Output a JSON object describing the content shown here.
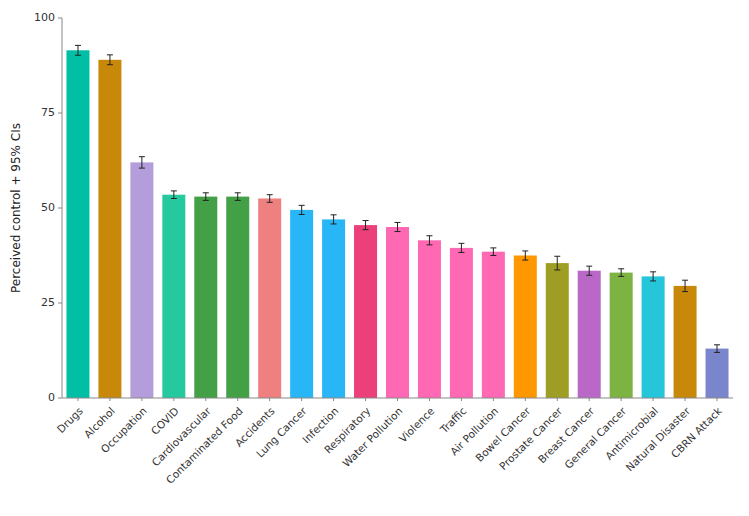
{
  "chart_data": {
    "type": "bar",
    "categories": [
      "Drugs",
      "Alcohol",
      "Occupation",
      "COVID",
      "Cardiovascular",
      "Contaminated Food",
      "Accidents",
      "Lung Cancer",
      "Infection",
      "Respiratory",
      "Water Pollution",
      "Violence",
      "Traffic",
      "Air Pollution",
      "Bowel Cancer",
      "Prostate Cancer",
      "Breast Cancer",
      "General Cancer",
      "Antimicrobial",
      "Natural Disaster",
      "CBRN Attack"
    ],
    "values": [
      91.5,
      89.0,
      62.0,
      53.5,
      53.0,
      53.0,
      52.5,
      49.5,
      47.0,
      45.5,
      45.0,
      41.5,
      39.5,
      38.5,
      37.5,
      35.5,
      33.5,
      33.0,
      32.0,
      29.5,
      13.0
    ],
    "errors": [
      1.3,
      1.3,
      1.5,
      1.0,
      1.0,
      1.0,
      1.0,
      1.2,
      1.2,
      1.2,
      1.2,
      1.2,
      1.2,
      1.0,
      1.2,
      1.8,
      1.2,
      1.0,
      1.2,
      1.5,
      1.0
    ],
    "colors": [
      "#00BFA5",
      "#C8880A",
      "#B39DDB",
      "#26C99E",
      "#43A047",
      "#43A047",
      "#EF8080",
      "#29B6F6",
      "#29B6F6",
      "#EC407A",
      "#FF69B4",
      "#FF69B4",
      "#FF69B4",
      "#FF69B4",
      "#FF9800",
      "#9E9D24",
      "#BA68C8",
      "#7CB342",
      "#26C6DA",
      "#C8880A",
      "#7986CB"
    ],
    "ylabel": "Perceived control + 95% CIs",
    "ylim": [
      0,
      100
    ],
    "yticks": [
      0,
      25,
      50,
      75,
      100
    ],
    "grid": false
  }
}
